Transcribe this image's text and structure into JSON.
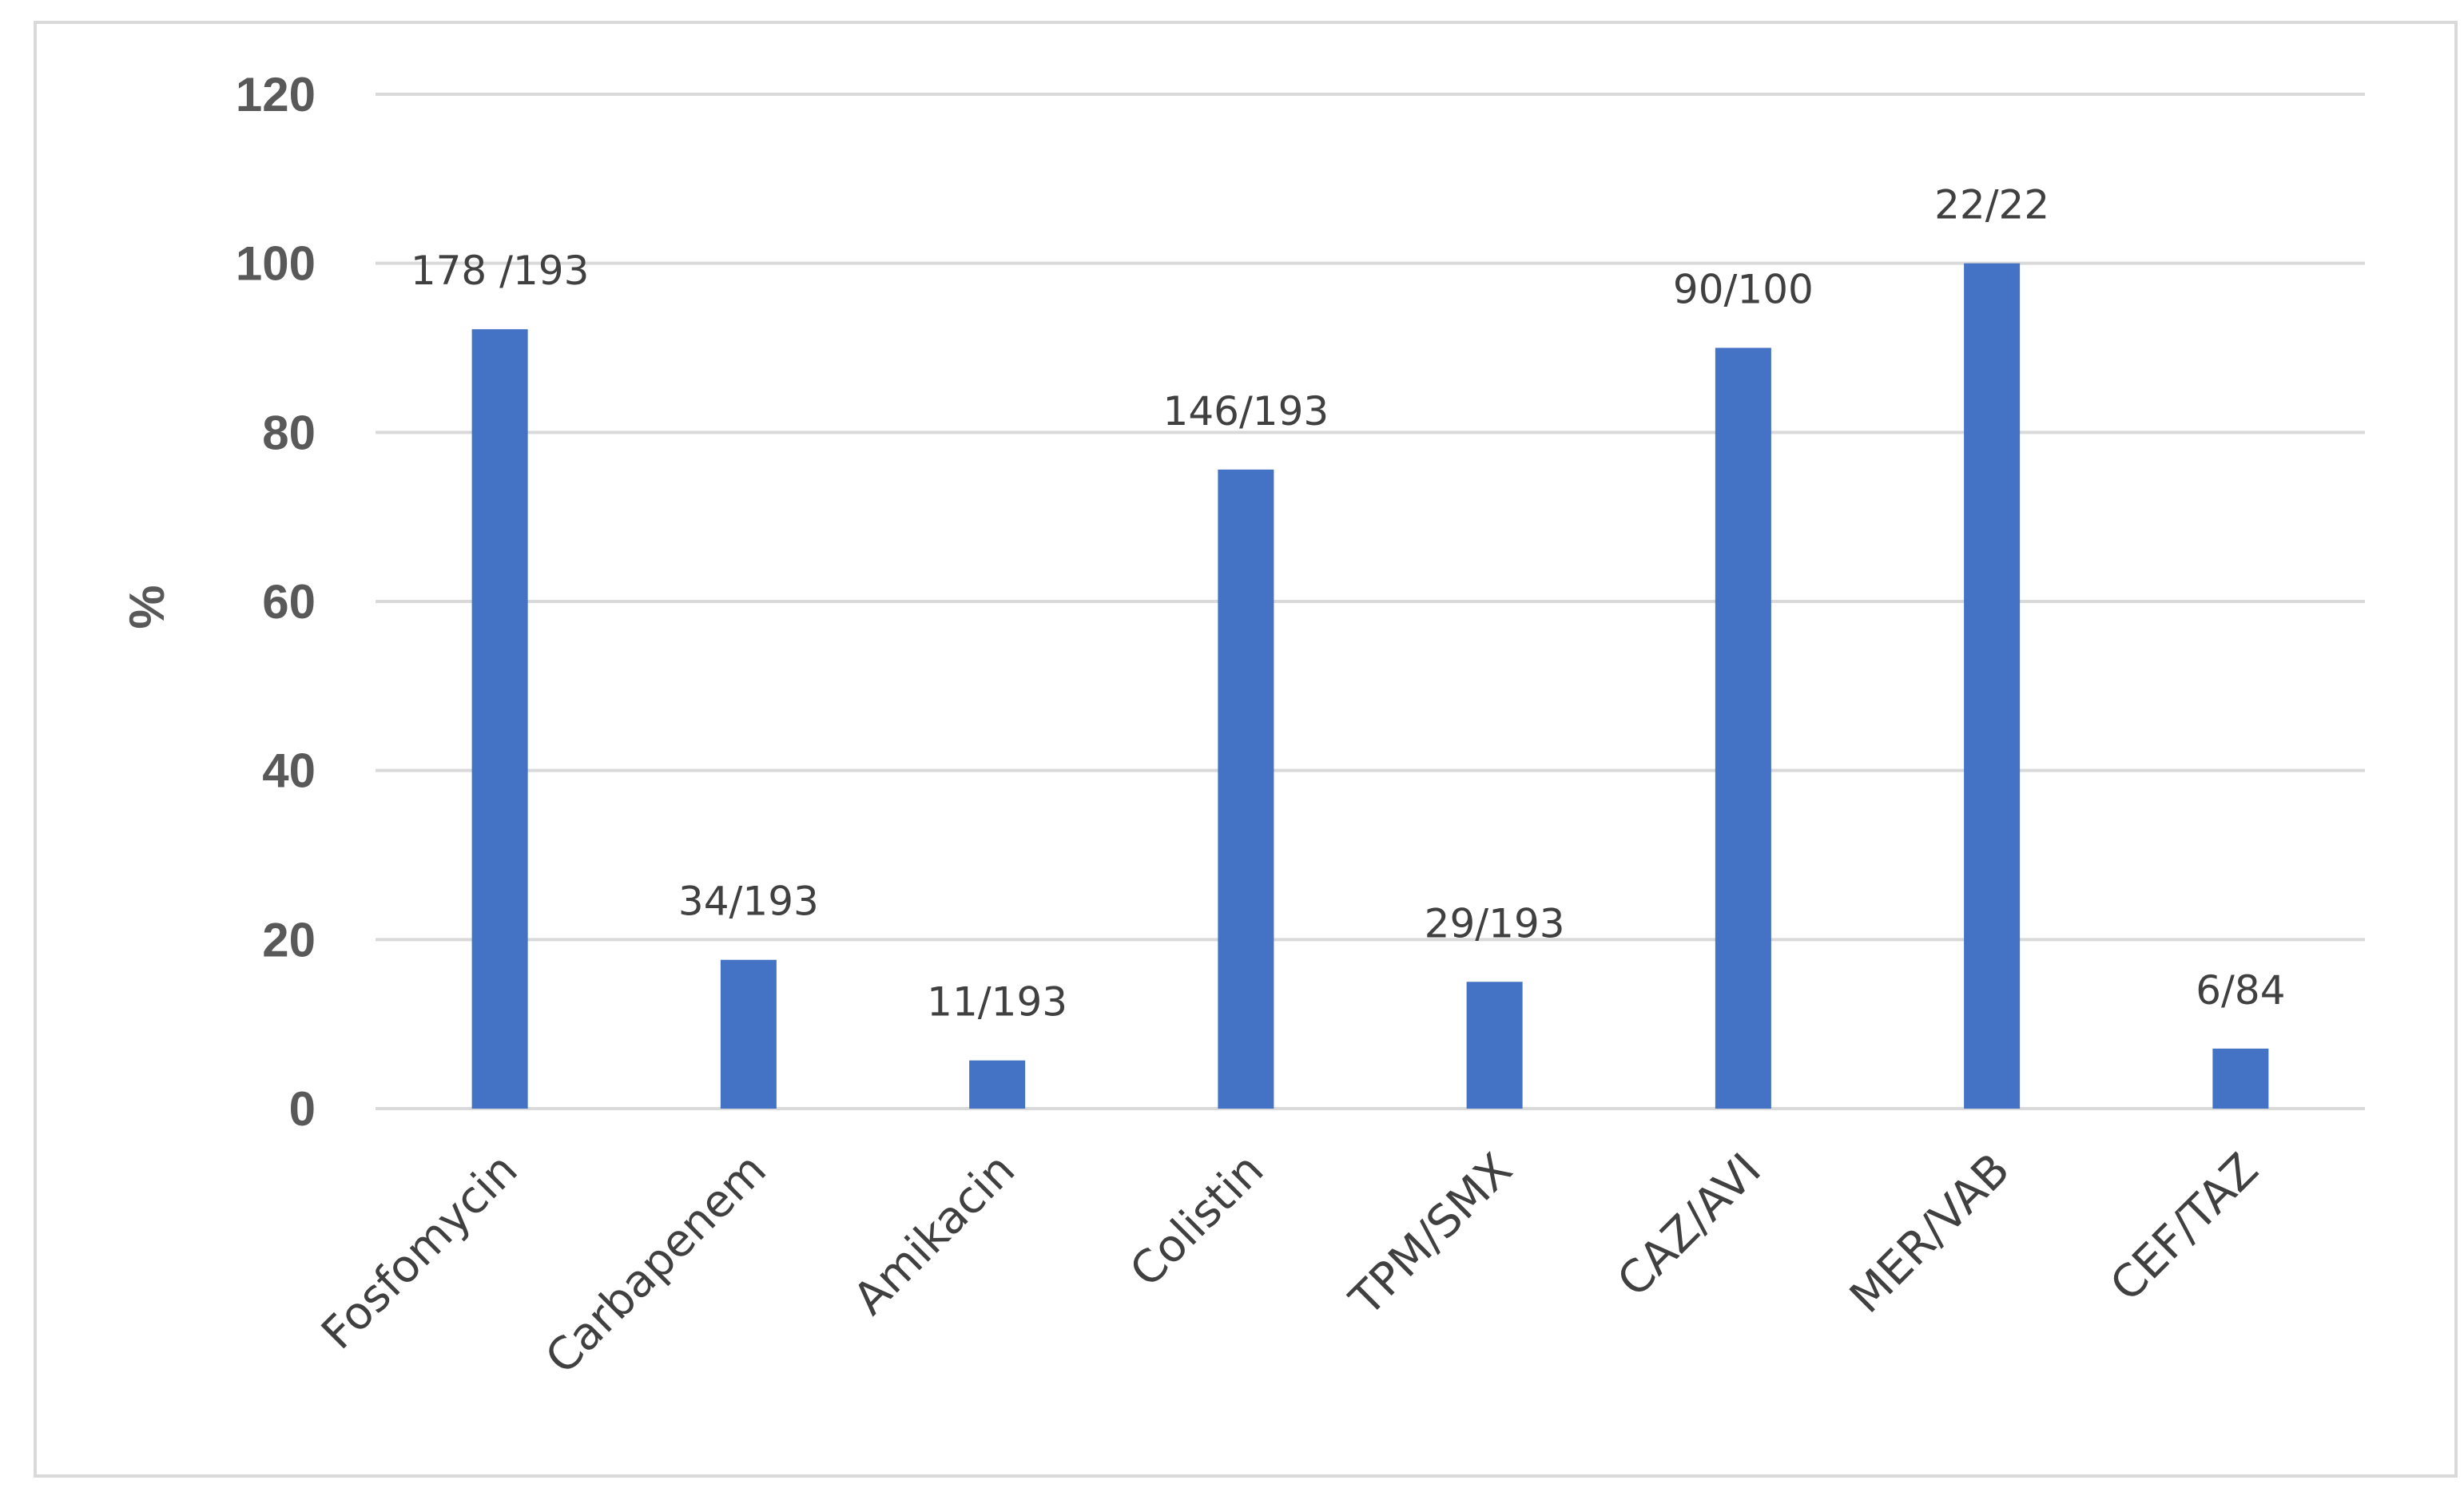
{
  "chart_data": {
    "type": "bar",
    "title": "",
    "xlabel": "",
    "ylabel": "%",
    "ylim": [
      0,
      120
    ],
    "yticks": [
      0,
      20,
      40,
      60,
      80,
      100,
      120
    ],
    "grid": true,
    "legend": "none",
    "categories": [
      "Fosfomycin",
      "Carbapenem",
      "Amikacin",
      "Colistin",
      "TPM/SMX",
      "CAZ/AVI",
      "MER/VAB",
      "CEF/TAZ"
    ],
    "values": [
      92.2,
      17.6,
      5.7,
      75.6,
      15.0,
      90.0,
      100.0,
      7.1
    ],
    "data_labels": [
      "178 /193",
      "34/193",
      "11/193",
      "146/193",
      "29/193",
      "90/100",
      "22/22",
      "6/84"
    ],
    "colors": {
      "bar": "#4472c4",
      "grid": "#d9d9d9",
      "frame": "#d9d9d9",
      "text": "#595959"
    }
  }
}
